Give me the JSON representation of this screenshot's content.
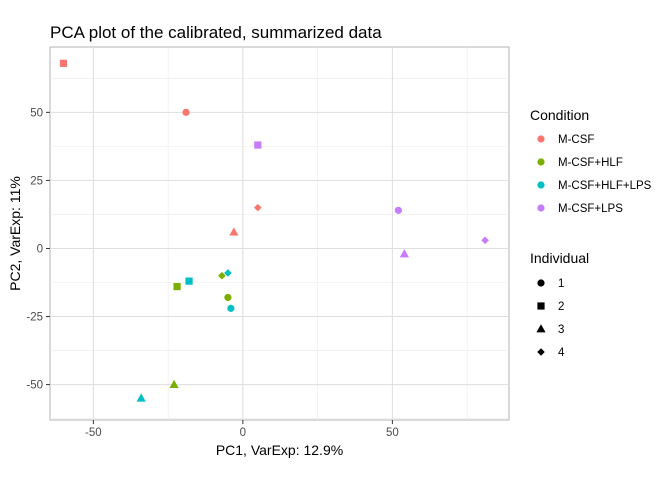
{
  "chart_data": {
    "type": "scatter",
    "title": "PCA plot of the calibrated, summarized data",
    "xlabel": "PC1, VarExp: 12.9%",
    "ylabel": "PC2, VarExp: 11%",
    "xlim": [
      -64.5,
      89
    ],
    "ylim": [
      -63,
      74
    ],
    "x_ticks": [
      -50,
      0,
      50
    ],
    "x_minor_ticks": [
      -75,
      -25,
      25,
      75
    ],
    "y_ticks": [
      -50,
      -25,
      0,
      25,
      50
    ],
    "y_minor_ticks": [
      -62.5,
      -37.5,
      -12.5,
      12.5,
      37.5,
      62.5
    ],
    "x_tick_labels": [
      "-50",
      "0",
      "50"
    ],
    "y_tick_labels": [
      "-50",
      "-25",
      "0",
      "25",
      "50"
    ],
    "grid": true,
    "legend_position": "right",
    "legends": {
      "color": {
        "title": "Condition",
        "entries": [
          {
            "label": "M-CSF",
            "color": "#F8766D"
          },
          {
            "label": "M-CSF+HLF",
            "color": "#7CAE00"
          },
          {
            "label": "M-CSF+HLF+LPS",
            "color": "#00BFC4"
          },
          {
            "label": "M-CSF+LPS",
            "color": "#C77CFF"
          }
        ]
      },
      "shape": {
        "title": "Individual",
        "entries": [
          {
            "label": "1",
            "shape": "circle"
          },
          {
            "label": "2",
            "shape": "square"
          },
          {
            "label": "3",
            "shape": "triangle"
          },
          {
            "label": "4",
            "shape": "diamond"
          }
        ]
      }
    },
    "points": [
      {
        "x": -60,
        "y": 68,
        "condition": "M-CSF",
        "individual": "2"
      },
      {
        "x": -19,
        "y": 50,
        "condition": "M-CSF",
        "individual": "1"
      },
      {
        "x": 5,
        "y": 15,
        "condition": "M-CSF",
        "individual": "4"
      },
      {
        "x": -3,
        "y": 6,
        "condition": "M-CSF",
        "individual": "3"
      },
      {
        "x": 5,
        "y": 38,
        "condition": "M-CSF+LPS",
        "individual": "2"
      },
      {
        "x": 52,
        "y": 14,
        "condition": "M-CSF+LPS",
        "individual": "1"
      },
      {
        "x": 81,
        "y": 3,
        "condition": "M-CSF+LPS",
        "individual": "4"
      },
      {
        "x": 54,
        "y": -2,
        "condition": "M-CSF+LPS",
        "individual": "3"
      },
      {
        "x": -7,
        "y": -10,
        "condition": "M-CSF+HLF",
        "individual": "4"
      },
      {
        "x": -5,
        "y": -9,
        "condition": "M-CSF+HLF+LPS",
        "individual": "4"
      },
      {
        "x": -18,
        "y": -12,
        "condition": "M-CSF+HLF+LPS",
        "individual": "2"
      },
      {
        "x": -22,
        "y": -14,
        "condition": "M-CSF+HLF",
        "individual": "2"
      },
      {
        "x": -5,
        "y": -18,
        "condition": "M-CSF+HLF",
        "individual": "1"
      },
      {
        "x": -4,
        "y": -22,
        "condition": "M-CSF+HLF+LPS",
        "individual": "1"
      },
      {
        "x": -23,
        "y": -50,
        "condition": "M-CSF+HLF",
        "individual": "3"
      },
      {
        "x": -34,
        "y": -55,
        "condition": "M-CSF+HLF+LPS",
        "individual": "3"
      }
    ]
  }
}
